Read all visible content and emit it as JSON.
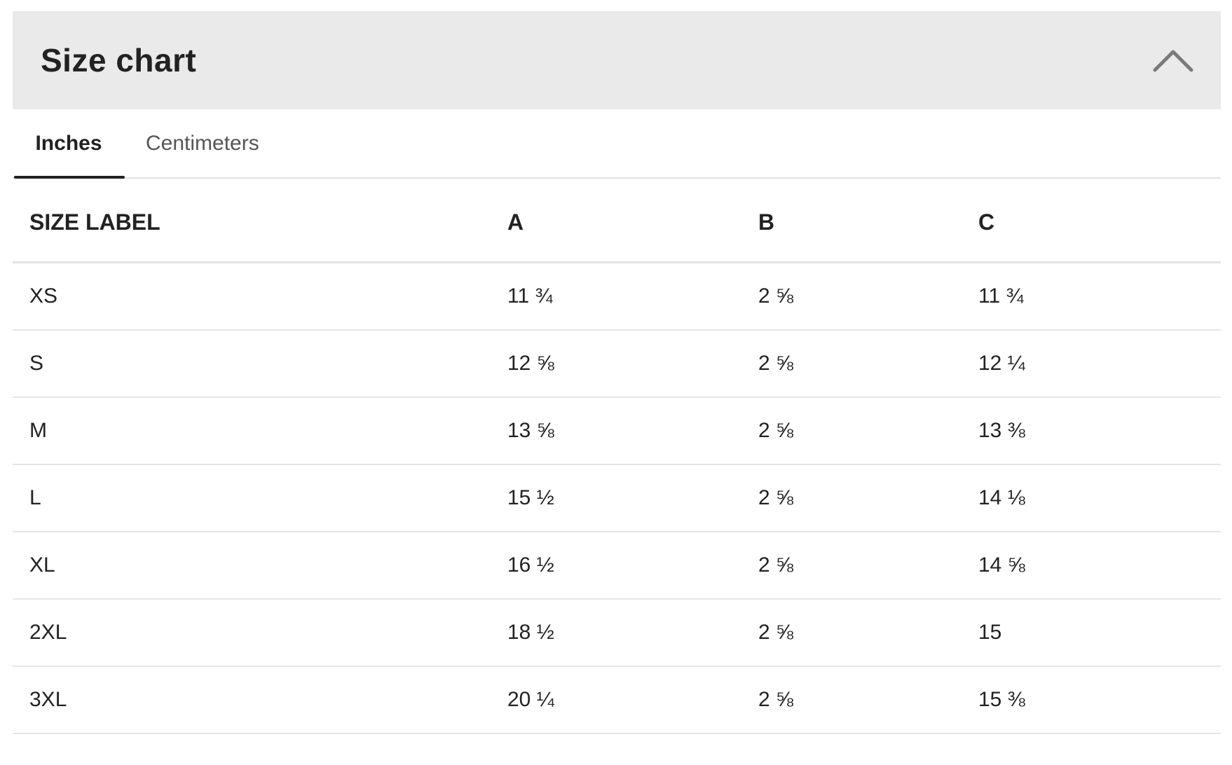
{
  "header": {
    "title": "Size chart",
    "collapse_icon": "chevron-up-icon"
  },
  "tabs": [
    {
      "label": "Inches",
      "active": true
    },
    {
      "label": "Centimeters",
      "active": false
    }
  ],
  "table": {
    "columns": [
      "SIZE LABEL",
      "A",
      "B",
      "C"
    ],
    "rows": [
      [
        "XS",
        "11 ¾",
        "2 ⅝",
        "11 ¾"
      ],
      [
        "S",
        "12 ⅝",
        "2 ⅝",
        "12 ¼"
      ],
      [
        "M",
        "13 ⅝",
        "2 ⅝",
        "13 ⅜"
      ],
      [
        "L",
        "15 ½",
        "2 ⅝",
        "14 ⅛"
      ],
      [
        "XL",
        "16 ½",
        "2 ⅝",
        "14 ⅝"
      ],
      [
        "2XL",
        "18 ½",
        "2 ⅝",
        "15"
      ],
      [
        "3XL",
        "20 ¼",
        "2 ⅝",
        "15 ⅜"
      ]
    ]
  }
}
